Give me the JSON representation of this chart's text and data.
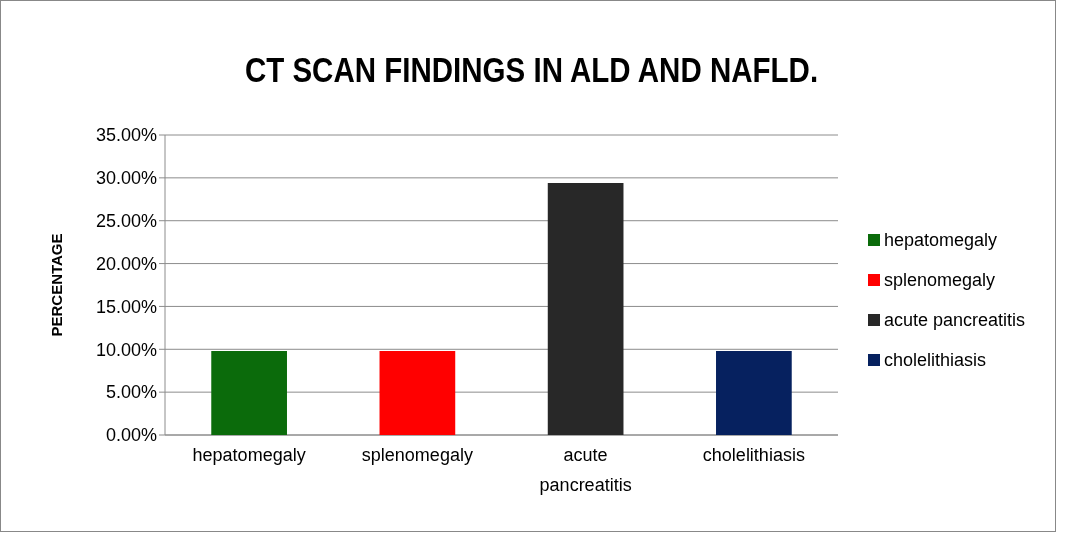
{
  "chart_data": {
    "type": "bar",
    "title": "CT SCAN FINDINGS IN ALD AND NAFLD.",
    "ylabel": "PERCENTAGE",
    "categories": [
      "hepatomegaly",
      "splenomegaly",
      "acute pancreatitis",
      "cholelithiasis"
    ],
    "series": [
      {
        "name": "hepatomegaly",
        "color": "#0b6b0b",
        "values": [
          9.8,
          null,
          null,
          null
        ]
      },
      {
        "name": "splenomegaly",
        "color": "#ff0000",
        "values": [
          null,
          9.8,
          null,
          null
        ]
      },
      {
        "name": "acute pancreatitis",
        "color": "#282828",
        "values": [
          null,
          null,
          29.4,
          null
        ]
      },
      {
        "name": "cholelithiasis",
        "color": "#06215f",
        "values": [
          null,
          null,
          null,
          9.8
        ]
      }
    ],
    "ylim": [
      0,
      35
    ],
    "yticks": [
      {
        "value": 0,
        "label": "0.00%"
      },
      {
        "value": 5,
        "label": "5.00%"
      },
      {
        "value": 10,
        "label": "10.00%"
      },
      {
        "value": 15,
        "label": "15.00%"
      },
      {
        "value": 20,
        "label": "20.00%"
      },
      {
        "value": 25,
        "label": "25.00%"
      },
      {
        "value": 30,
        "label": "30.00%"
      },
      {
        "value": 35,
        "label": "35.00%"
      }
    ],
    "grid": "y",
    "legend": "right"
  }
}
